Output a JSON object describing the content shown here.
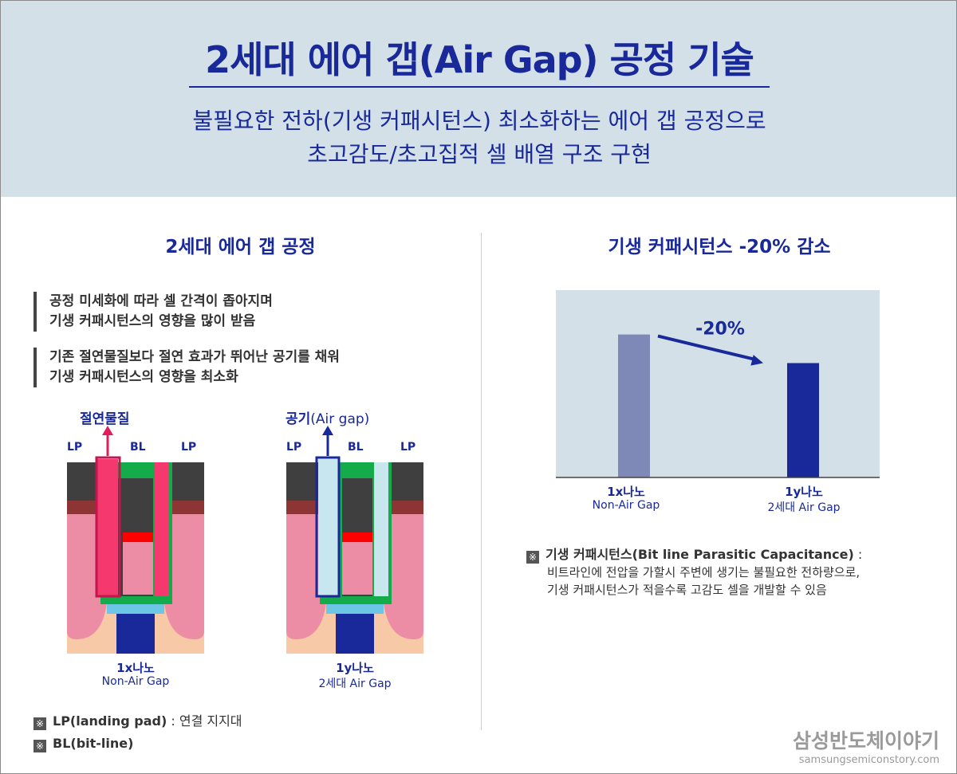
{
  "header": {
    "title": "2세대 에어 갭(Air Gap) 공정 기술",
    "subtitle_line1": "불필요한 전하(기생 커패시턴스) 최소화하는 에어 갭 공정으로",
    "subtitle_line2": "초고감도/초고집적 셀 배열 구조 구현"
  },
  "left": {
    "title": "2세대 에어 갭 공정",
    "bullets": [
      {
        "line1": "공정 미세화에 따라 셀 간격이 좁아지며",
        "line2": "기생 커패시턴스의 영향을 많이 받음"
      },
      {
        "line1": "기존 절연물질보다 절연 효과가 뛰어난 공기를 채워",
        "line2": "기생 커패시턴스의 영향을 최소화"
      }
    ],
    "diagram1": {
      "top_label": "절연물질",
      "lp_left": "LP",
      "bl": "BL",
      "lp_right": "LP",
      "caption_bold": "1x나노",
      "caption": "Non-Air Gap"
    },
    "diagram2": {
      "top_label_bold": "공기",
      "top_label_rest": "(Air gap)",
      "lp_left": "LP",
      "bl": "BL",
      "lp_right": "LP",
      "caption_bold": "1y나노",
      "caption": "2세대 Air Gap"
    },
    "notes": [
      {
        "mark": "※",
        "bold": "LP(landing pad)",
        "rest": " : 연결 지지대"
      },
      {
        "mark": "※",
        "bold": "BL(bit-line)",
        "rest": ""
      }
    ]
  },
  "right": {
    "title": "기생 커패시턴스 -20% 감소",
    "annotation": "-20%",
    "note": {
      "mark": "※",
      "bold": "기생 커패시턴스(Bit line Parasitic Capacitance)",
      "rest": " :",
      "line2": "비트라인에 전압을 가할시 주변에 생기는 불필요한 전하량으로,",
      "line3": "기생 커패시턴스가 적을수록 고감도 셀을 개발할 수 있음"
    }
  },
  "chart_data": {
    "type": "bar",
    "categories": [
      "1x나노",
      "1y나노"
    ],
    "category_sublabels": [
      "Non-Air Gap",
      "2세대 Air Gap"
    ],
    "values": [
      100,
      80
    ],
    "ylim": [
      0,
      131
    ],
    "colors": [
      "#7f89b7",
      "#19299a"
    ],
    "annotation": "-20%",
    "grid": false,
    "legend": "none"
  },
  "colors": {
    "navy": "#19299a",
    "header_bg": "#d3e0e8",
    "chart_bg": "#d3e0e8",
    "insulator": "#f5386d",
    "airgap": "#c7e6ee",
    "green": "#14ab4a",
    "dark": "#3f3f3f",
    "pink": "#ec8da5",
    "peach": "#f8c9a6",
    "brown": "#8d3535"
  },
  "brand": {
    "name": "삼성반도체이야기",
    "url": "samsungsemiconstory.com"
  }
}
